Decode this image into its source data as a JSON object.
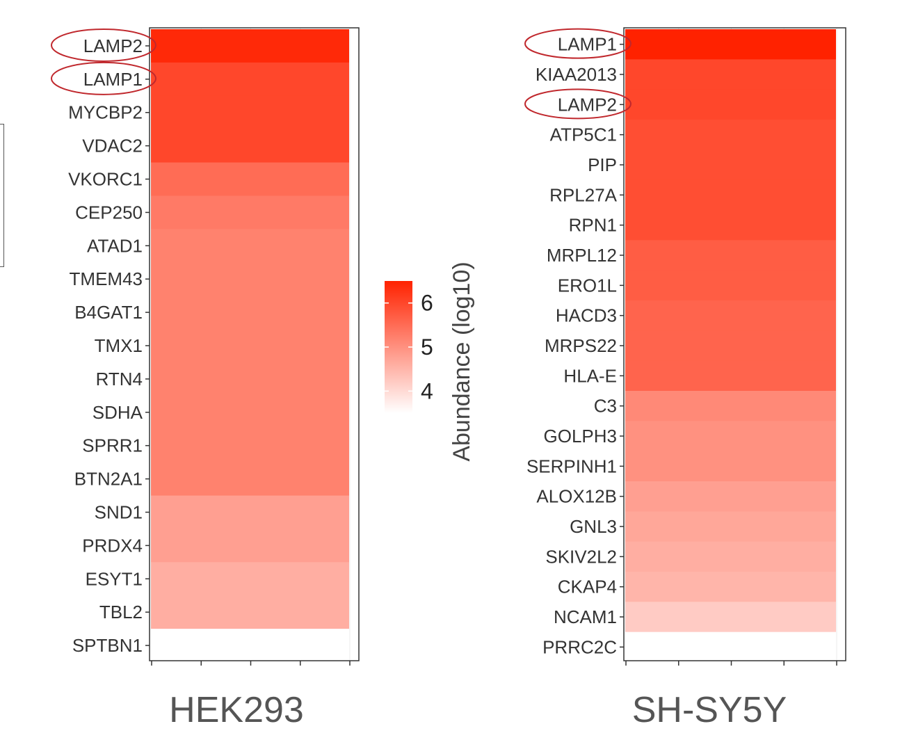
{
  "chart_data": [
    {
      "type": "heatmap",
      "title": "HEK293",
      "xlabel": "",
      "ylabel": "",
      "categories": [
        "LAMP2",
        "LAMP1",
        "MYCBP2",
        "VDAC2",
        "VKORC1",
        "CEP250",
        "ATAD1",
        "TMEM43",
        "B4GAT1",
        "TMX1",
        "RTN4",
        "SDHA",
        "SPRR1",
        "BTN2A1",
        "SND1",
        "PRDX4",
        "ESYT1",
        "TBL2",
        "SPTBN1"
      ],
      "values": [
        6.4,
        6.0,
        6.0,
        6.0,
        5.5,
        5.3,
        5.2,
        5.2,
        5.2,
        5.2,
        5.2,
        5.2,
        5.2,
        5.2,
        4.8,
        4.8,
        4.6,
        4.6,
        3.5
      ],
      "highlighted": [
        "LAMP2",
        "LAMP1"
      ]
    },
    {
      "type": "heatmap",
      "title": "SH-SY5Y",
      "xlabel": "",
      "ylabel": "",
      "categories": [
        "LAMP1",
        "KIAA2013",
        "LAMP2",
        "ATP5C1",
        "PIP",
        "RPL27A",
        "RPN1",
        "MRPL12",
        "ERO1L",
        "HACD3",
        "MRPS22",
        "HLA-E",
        "C3",
        "GOLPH3",
        "SERPINH1",
        "ALOX12B",
        "GNL3",
        "SKIV2L2",
        "CKAP4",
        "NCAM1",
        "PRRC2C"
      ],
      "values": [
        6.5,
        6.0,
        6.0,
        5.9,
        5.9,
        5.9,
        5.9,
        5.7,
        5.7,
        5.6,
        5.6,
        5.6,
        5.1,
        5.0,
        5.0,
        4.8,
        4.7,
        4.6,
        4.5,
        4.2,
        3.5
      ],
      "highlighted": [
        "LAMP1",
        "LAMP2"
      ]
    }
  ],
  "legend": {
    "title": "Abundance (log10)",
    "ticks": [
      6,
      5,
      4
    ],
    "range": [
      3.5,
      6.5
    ],
    "color_high": "#ff2200",
    "color_low": "#ffffff"
  },
  "colors": {
    "axis_text": "#333333",
    "highlight_ring": "#c0282d",
    "panel_border": "#333333",
    "grid": "#ebebeb"
  }
}
